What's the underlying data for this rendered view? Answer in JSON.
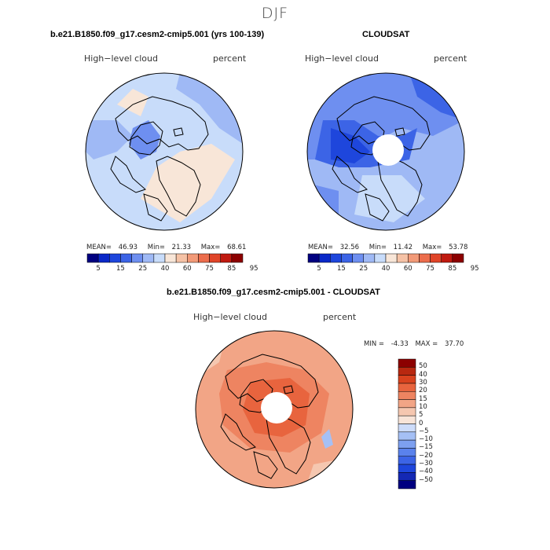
{
  "figure": {
    "season": "DJF"
  },
  "colors": {
    "abs_scale": [
      "#000080",
      "#0a28c8",
      "#1e46dc",
      "#3c64e6",
      "#6e8ff0",
      "#9fb9f5",
      "#c8dcfa",
      "#f8e6d8",
      "#f5c2a6",
      "#f29a78",
      "#ec6d4c",
      "#e04428",
      "#c01a10",
      "#8c0000"
    ],
    "diff_scale": [
      "#000080",
      "#1428b4",
      "#1e46dc",
      "#3c64e6",
      "#5a82ec",
      "#7da0f0",
      "#a5c0f5",
      "#cddcfa",
      "#f8e4d8",
      "#f5c7b0",
      "#f2a586",
      "#ee8461",
      "#e8643e",
      "#d8421e",
      "#b82810",
      "#8c0000"
    ],
    "coast": "#000000"
  },
  "chart_data": [
    {
      "type": "heatmap",
      "projection": "north-polar-stereographic",
      "title": "b.e21.B1850.f09_g17.cesm2-cmip5.001 (yrs 100-139)",
      "left_label": "High−level cloud",
      "right_label": "percent",
      "stats": {
        "mean_label": "MEAN=",
        "mean": "46.93",
        "min_label": "Min=",
        "min": "21.33",
        "max_label": "Max=",
        "max": "68.61"
      },
      "colorbar_levels": [
        5,
        15,
        25,
        40,
        60,
        75,
        85,
        95
      ],
      "colorbar_tick_labels": [
        "5",
        "15",
        "25",
        "40",
        "60",
        "75",
        "85",
        "95"
      ],
      "has_pole_hole": false
    },
    {
      "type": "heatmap",
      "projection": "north-polar-stereographic",
      "title": "CLOUDSAT",
      "left_label": "High−level cloud",
      "right_label": "percent",
      "stats": {
        "mean_label": "MEAN=",
        "mean": "32.56",
        "min_label": "Min=",
        "min": "11.42",
        "max_label": "Max=",
        "max": "53.78"
      },
      "colorbar_levels": [
        5,
        15,
        25,
        40,
        60,
        75,
        85,
        95
      ],
      "colorbar_tick_labels": [
        "5",
        "15",
        "25",
        "40",
        "60",
        "75",
        "85",
        "95"
      ],
      "has_pole_hole": true
    },
    {
      "type": "heatmap",
      "projection": "north-polar-stereographic",
      "title": "b.e21.B1850.f09_g17.cesm2-cmip5.001 - CLOUDSAT",
      "left_label": "High−level cloud",
      "right_label": "percent",
      "stats": {
        "min_label": "MIN =",
        "min": "-4.33",
        "max_label": "MAX =",
        "max": "37.70"
      },
      "colorbar_levels": [
        50,
        40,
        30,
        20,
        15,
        10,
        5,
        0,
        -5,
        -10,
        -15,
        -20,
        -30,
        -40,
        -50
      ],
      "colorbar_tick_labels": [
        "50",
        "40",
        "30",
        "20",
        "15",
        "10",
        "5",
        "0",
        "−5",
        "−10",
        "−15",
        "−20",
        "−30",
        "−40",
        "−50"
      ],
      "has_pole_hole": true
    }
  ]
}
